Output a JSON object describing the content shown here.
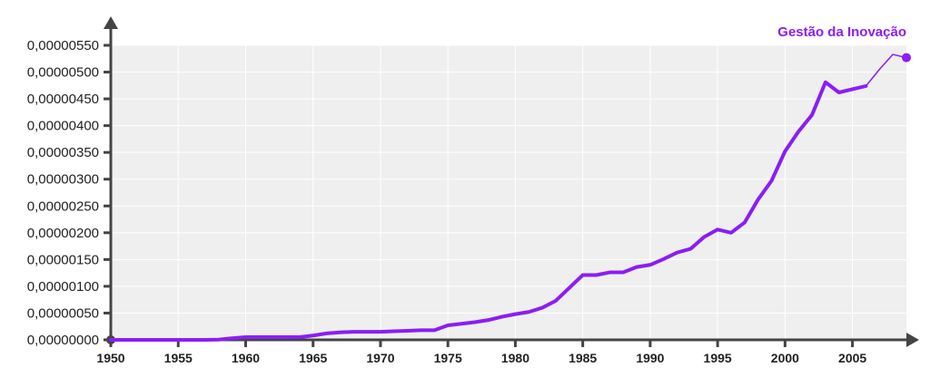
{
  "chart_data": {
    "type": "line",
    "title": "",
    "xlabel": "",
    "ylabel": "",
    "xlim": [
      1950,
      2009
    ],
    "ylim": [
      0,
      5.5e-06
    ],
    "grid": true,
    "y_ticks": [
      {
        "value": 0.0,
        "label": "0,00000000"
      },
      {
        "value": 5e-07,
        "label": "0,00000050"
      },
      {
        "value": 1e-06,
        "label": "0,00000100"
      },
      {
        "value": 1.5e-06,
        "label": "0,00000150"
      },
      {
        "value": 2e-06,
        "label": "0,00000200"
      },
      {
        "value": 2.5e-06,
        "label": "0,00000250"
      },
      {
        "value": 3e-06,
        "label": "0,00000300"
      },
      {
        "value": 3.5e-06,
        "label": "0,00000350"
      },
      {
        "value": 4e-06,
        "label": "0,00000400"
      },
      {
        "value": 4.5e-06,
        "label": "0,00000450"
      },
      {
        "value": 5e-06,
        "label": "0,00000500"
      },
      {
        "value": 5.5e-06,
        "label": "0,00000550"
      }
    ],
    "x_ticks": [
      {
        "value": 1950,
        "label": "1950"
      },
      {
        "value": 1955,
        "label": "1955"
      },
      {
        "value": 1960,
        "label": "1960"
      },
      {
        "value": 1965,
        "label": "1965"
      },
      {
        "value": 1970,
        "label": "1970"
      },
      {
        "value": 1975,
        "label": "1975"
      },
      {
        "value": 1980,
        "label": "1980"
      },
      {
        "value": 1985,
        "label": "1985"
      },
      {
        "value": 1990,
        "label": "1990"
      },
      {
        "value": 1995,
        "label": "1995"
      },
      {
        "value": 2000,
        "label": "2000"
      },
      {
        "value": 2005,
        "label": "2005"
      }
    ],
    "series": [
      {
        "name": "Gestão da Inovação",
        "color": "#8A1EF5",
        "x": [
          1950,
          1955,
          1956,
          1957,
          1958,
          1959,
          1960,
          1961,
          1962,
          1963,
          1964,
          1965,
          1966,
          1967,
          1968,
          1969,
          1970,
          1971,
          1972,
          1973,
          1974,
          1975,
          1976,
          1977,
          1978,
          1979,
          1980,
          1981,
          1982,
          1983,
          1984,
          1985,
          1986,
          1987,
          1988,
          1989,
          1990,
          1991,
          1992,
          1993,
          1994,
          1995,
          1996,
          1997,
          1998,
          1999,
          2000,
          2001,
          2002,
          2003,
          2004,
          2005,
          2006,
          2007,
          2008,
          2009
        ],
        "y": [
          0,
          0,
          0,
          0,
          5e-09,
          3e-08,
          5e-08,
          5e-08,
          5e-08,
          5e-08,
          5e-08,
          8e-08,
          1.2e-07,
          1.4e-07,
          1.5e-07,
          1.5e-07,
          1.5e-07,
          1.6e-07,
          1.7e-07,
          1.8e-07,
          1.8e-07,
          2.7e-07,
          3e-07,
          3.3e-07,
          3.7e-07,
          4.3e-07,
          4.8e-07,
          5.2e-07,
          6e-07,
          7.3e-07,
          9.7e-07,
          1.21e-06,
          1.21e-06,
          1.26e-06,
          1.26e-06,
          1.36e-06,
          1.4e-06,
          1.51e-06,
          1.63e-06,
          1.7e-06,
          1.92e-06,
          2.06e-06,
          2e-06,
          2.19e-06,
          2.62e-06,
          2.97e-06,
          3.52e-06,
          3.89e-06,
          4.2e-06,
          4.81e-06,
          4.62e-06,
          4.68e-06,
          4.74e-06,
          5.05e-06,
          5.33e-06,
          5.27e-06
        ]
      }
    ]
  }
}
